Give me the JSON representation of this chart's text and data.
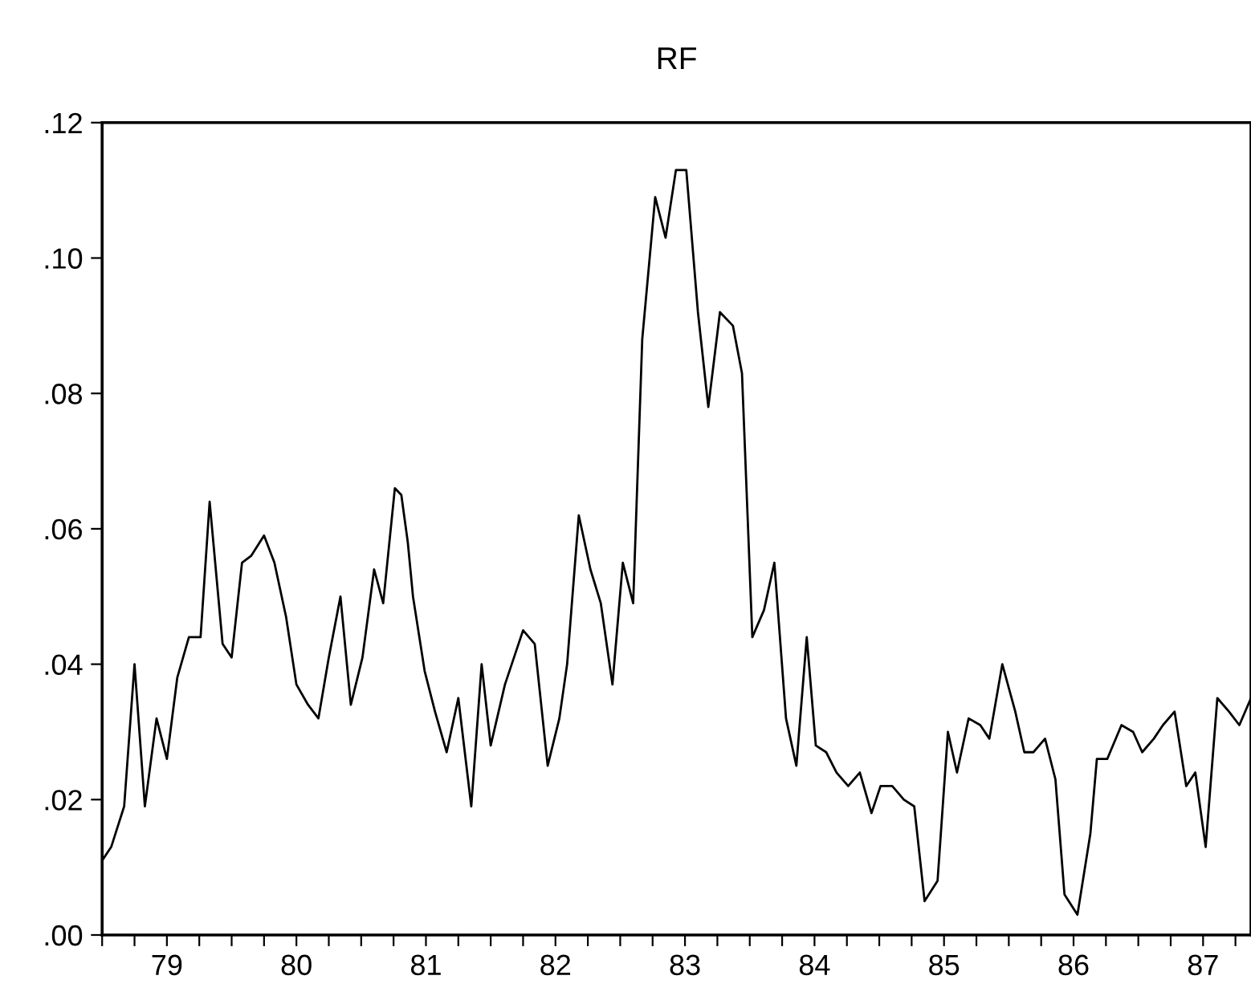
{
  "chart_data": {
    "type": "line",
    "title": "RF",
    "line_style": "solid",
    "marker": "none",
    "x": [
      1978.5,
      1978.57,
      1978.67,
      1978.75,
      1978.83,
      1978.92,
      1979.0,
      1979.08,
      1979.17,
      1979.26,
      1979.33,
      1979.43,
      1979.5,
      1979.58,
      1979.65,
      1979.75,
      1979.83,
      1979.92,
      1980.0,
      1980.09,
      1980.17,
      1980.25,
      1980.34,
      1980.42,
      1980.51,
      1980.6,
      1980.67,
      1980.76,
      1980.81,
      1980.86,
      1980.9,
      1980.99,
      1981.07,
      1981.16,
      1981.25,
      1981.35,
      1981.43,
      1981.5,
      1981.61,
      1981.68,
      1981.75,
      1981.84,
      1981.94,
      1982.03,
      1982.09,
      1982.18,
      1982.27,
      1982.35,
      1982.44,
      1982.52,
      1982.6,
      1982.67,
      1982.77,
      1982.85,
      1982.93,
      1983.01,
      1983.1,
      1983.18,
      1983.27,
      1983.37,
      1983.44,
      1983.52,
      1983.61,
      1983.69,
      1983.78,
      1983.86,
      1983.94,
      1984.01,
      1984.09,
      1984.17,
      1984.26,
      1984.35,
      1984.44,
      1984.51,
      1984.6,
      1984.69,
      1984.77,
      1984.85,
      1984.95,
      1985.03,
      1985.1,
      1985.19,
      1985.28,
      1985.35,
      1985.45,
      1985.55,
      1985.62,
      1985.69,
      1985.78,
      1985.86,
      1985.93,
      1986.03,
      1986.13,
      1986.18,
      1986.26,
      1986.37,
      1986.46,
      1986.53,
      1986.62,
      1986.69,
      1986.78,
      1986.87,
      1986.94,
      1987.02,
      1987.11,
      1987.2,
      1987.28,
      1987.37
    ],
    "series": [
      {
        "color": "#000000",
        "values": [
          0.011,
          0.013,
          0.019,
          0.04,
          0.019,
          0.032,
          0.026,
          0.038,
          0.044,
          0.044,
          0.064,
          0.043,
          0.041,
          0.055,
          0.056,
          0.059,
          0.055,
          0.047,
          0.037,
          0.034,
          0.032,
          0.041,
          0.05,
          0.034,
          0.041,
          0.054,
          0.049,
          0.066,
          0.065,
          0.058,
          0.05,
          0.039,
          0.033,
          0.027,
          0.035,
          0.019,
          0.04,
          0.028,
          0.037,
          0.041,
          0.045,
          0.043,
          0.025,
          0.032,
          0.04,
          0.062,
          0.054,
          0.049,
          0.037,
          0.055,
          0.049,
          0.088,
          0.109,
          0.103,
          0.113,
          0.113,
          0.092,
          0.078,
          0.092,
          0.09,
          0.083,
          0.044,
          0.048,
          0.055,
          0.032,
          0.025,
          0.044,
          0.028,
          0.027,
          0.024,
          0.022,
          0.024,
          0.018,
          0.022,
          0.022,
          0.02,
          0.019,
          0.005,
          0.008,
          0.03,
          0.024,
          0.032,
          0.031,
          0.029,
          0.04,
          0.033,
          0.027,
          0.027,
          0.029,
          0.023,
          0.006,
          0.003,
          0.015,
          0.026,
          0.026,
          0.031,
          0.03,
          0.027,
          0.029,
          0.031,
          0.033,
          0.022,
          0.024,
          0.013,
          0.035,
          0.033,
          0.031,
          0.035
        ]
      }
    ],
    "xlim": [
      1978.5,
      1987.37
    ],
    "xticks": [
      {
        "value": 1978.5,
        "label": null
      },
      {
        "value": 1978.75,
        "label": null
      },
      {
        "value": 1979,
        "label": "79"
      },
      {
        "value": 1979.25,
        "label": null
      },
      {
        "value": 1979.5,
        "label": null
      },
      {
        "value": 1979.75,
        "label": null
      },
      {
        "value": 1980,
        "label": "80"
      },
      {
        "value": 1980.25,
        "label": null
      },
      {
        "value": 1980.5,
        "label": null
      },
      {
        "value": 1980.75,
        "label": null
      },
      {
        "value": 1981,
        "label": "81"
      },
      {
        "value": 1981.25,
        "label": null
      },
      {
        "value": 1981.5,
        "label": null
      },
      {
        "value": 1981.75,
        "label": null
      },
      {
        "value": 1982,
        "label": "82"
      },
      {
        "value": 1982.25,
        "label": null
      },
      {
        "value": 1982.5,
        "label": null
      },
      {
        "value": 1982.75,
        "label": null
      },
      {
        "value": 1983,
        "label": "83"
      },
      {
        "value": 1983.25,
        "label": null
      },
      {
        "value": 1983.5,
        "label": null
      },
      {
        "value": 1983.75,
        "label": null
      },
      {
        "value": 1984,
        "label": "84"
      },
      {
        "value": 1984.25,
        "label": null
      },
      {
        "value": 1984.5,
        "label": null
      },
      {
        "value": 1984.75,
        "label": null
      },
      {
        "value": 1985,
        "label": "85"
      },
      {
        "value": 1985.25,
        "label": null
      },
      {
        "value": 1985.5,
        "label": null
      },
      {
        "value": 1985.75,
        "label": null
      },
      {
        "value": 1986,
        "label": "86"
      },
      {
        "value": 1986.25,
        "label": null
      },
      {
        "value": 1986.5,
        "label": null
      },
      {
        "value": 1986.75,
        "label": null
      },
      {
        "value": 1987,
        "label": "87"
      },
      {
        "value": 1987.25,
        "label": null
      }
    ],
    "ylim": [
      0,
      0.12
    ],
    "yticks": [
      {
        "value": 0,
        "label": ".00"
      },
      {
        "value": 0.02,
        "label": ".02"
      },
      {
        "value": 0.04,
        "label": ".04"
      },
      {
        "value": 0.06,
        "label": ".06"
      },
      {
        "value": 0.08,
        "label": ".08"
      },
      {
        "value": 0.1,
        "label": ".10"
      },
      {
        "value": 0.12,
        "label": ".12"
      }
    ]
  }
}
